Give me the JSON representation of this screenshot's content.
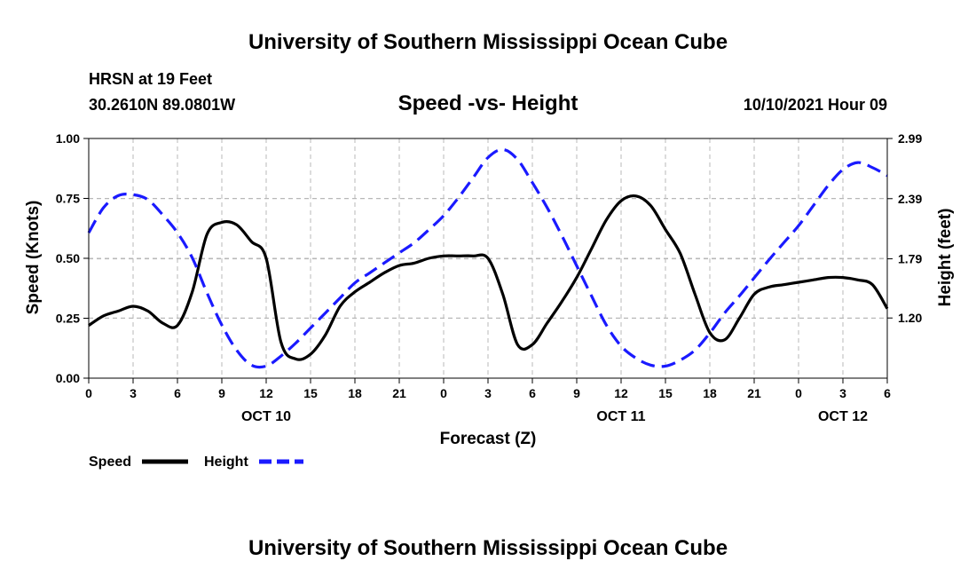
{
  "header": {
    "title": "University of Southern Mississippi Ocean Cube",
    "station": "HRSN at 19 Feet",
    "coords": "30.2610N  89.0801W",
    "chart_title": "Speed -vs- Height",
    "datetime": "10/10/2021 Hour 09"
  },
  "footer": {
    "title": "University of Southern Mississippi Ocean Cube"
  },
  "colors": {
    "speed": "#000000",
    "height": "#1a1aff",
    "grid": "#b8b8b8"
  },
  "chart_data": {
    "type": "line",
    "title": "Speed -vs- Height",
    "xlabel": "Forecast (Z)",
    "ylabel": "Speed (Knots)",
    "y2label": "Height (feet)",
    "xlim": [
      0,
      54
    ],
    "ylim": [
      0,
      1.0
    ],
    "y2lim": [
      0.6,
      2.99
    ],
    "x_ticks": [
      0,
      3,
      6,
      9,
      12,
      15,
      18,
      21,
      24,
      27,
      30,
      33,
      36,
      39,
      42,
      45,
      48,
      51,
      54
    ],
    "x_tick_labels": [
      "0",
      "3",
      "6",
      "9",
      "12",
      "15",
      "18",
      "21",
      "0",
      "3",
      "6",
      "9",
      "12",
      "15",
      "18",
      "21",
      "0",
      "3",
      "6"
    ],
    "y_ticks": [
      0,
      0.25,
      0.5,
      0.75,
      1.0
    ],
    "y_tick_labels": [
      "0.00",
      "0.25",
      "0.50",
      "0.75",
      "1.00"
    ],
    "y2_ticks": [
      1.2,
      1.79,
      2.39,
      2.99
    ],
    "y2_tick_labels": [
      "1.20",
      "1.79",
      "2.39",
      "2.99"
    ],
    "date_labels": [
      {
        "x": 12,
        "label": "OCT 10"
      },
      {
        "x": 36,
        "label": "OCT 11"
      },
      {
        "x": 51,
        "label": "OCT 12"
      }
    ],
    "legend": [
      "Speed",
      "Height"
    ],
    "series": [
      {
        "name": "Speed",
        "axis": "left",
        "style": "solid",
        "x": [
          0,
          1,
          2,
          3,
          4,
          5,
          6,
          7,
          8,
          9,
          10,
          11,
          12,
          13,
          14,
          15,
          16,
          17,
          18,
          19,
          20,
          21,
          22,
          23,
          24,
          25,
          26,
          27,
          28,
          29,
          30,
          31,
          32,
          33,
          34,
          35,
          36,
          37,
          38,
          39,
          40,
          41,
          42,
          43,
          44,
          45,
          46,
          47,
          48,
          49,
          50,
          51,
          52,
          53,
          54
        ],
        "values": [
          0.22,
          0.26,
          0.28,
          0.3,
          0.28,
          0.23,
          0.22,
          0.36,
          0.6,
          0.65,
          0.64,
          0.57,
          0.5,
          0.15,
          0.08,
          0.1,
          0.18,
          0.3,
          0.36,
          0.4,
          0.44,
          0.47,
          0.48,
          0.5,
          0.51,
          0.51,
          0.51,
          0.5,
          0.35,
          0.14,
          0.14,
          0.23,
          0.32,
          0.42,
          0.54,
          0.66,
          0.74,
          0.76,
          0.72,
          0.62,
          0.52,
          0.35,
          0.19,
          0.16,
          0.25,
          0.35,
          0.38,
          0.39,
          0.4,
          0.41,
          0.42,
          0.42,
          0.41,
          0.39,
          0.29
        ]
      },
      {
        "name": "Height",
        "axis": "right",
        "style": "dashed",
        "x": [
          0,
          1,
          2,
          3,
          4,
          5,
          6,
          7,
          8,
          9,
          10,
          11,
          12,
          13,
          14,
          15,
          16,
          17,
          18,
          19,
          20,
          21,
          22,
          23,
          24,
          25,
          26,
          27,
          28,
          29,
          30,
          31,
          32,
          33,
          34,
          35,
          36,
          37,
          38,
          39,
          40,
          41,
          42,
          43,
          44,
          45,
          46,
          47,
          48,
          49,
          50,
          51,
          52,
          53,
          54
        ],
        "values": [
          2.05,
          2.3,
          2.42,
          2.43,
          2.38,
          2.23,
          2.05,
          1.8,
          1.45,
          1.13,
          0.88,
          0.73,
          0.72,
          0.82,
          0.95,
          1.1,
          1.25,
          1.4,
          1.55,
          1.65,
          1.75,
          1.85,
          1.95,
          2.08,
          2.22,
          2.4,
          2.6,
          2.8,
          2.88,
          2.78,
          2.55,
          2.3,
          2.02,
          1.72,
          1.42,
          1.13,
          0.92,
          0.8,
          0.73,
          0.72,
          0.78,
          0.88,
          1.05,
          1.25,
          1.42,
          1.6,
          1.78,
          1.95,
          2.12,
          2.32,
          2.52,
          2.68,
          2.75,
          2.7,
          2.62
        ]
      }
    ]
  }
}
